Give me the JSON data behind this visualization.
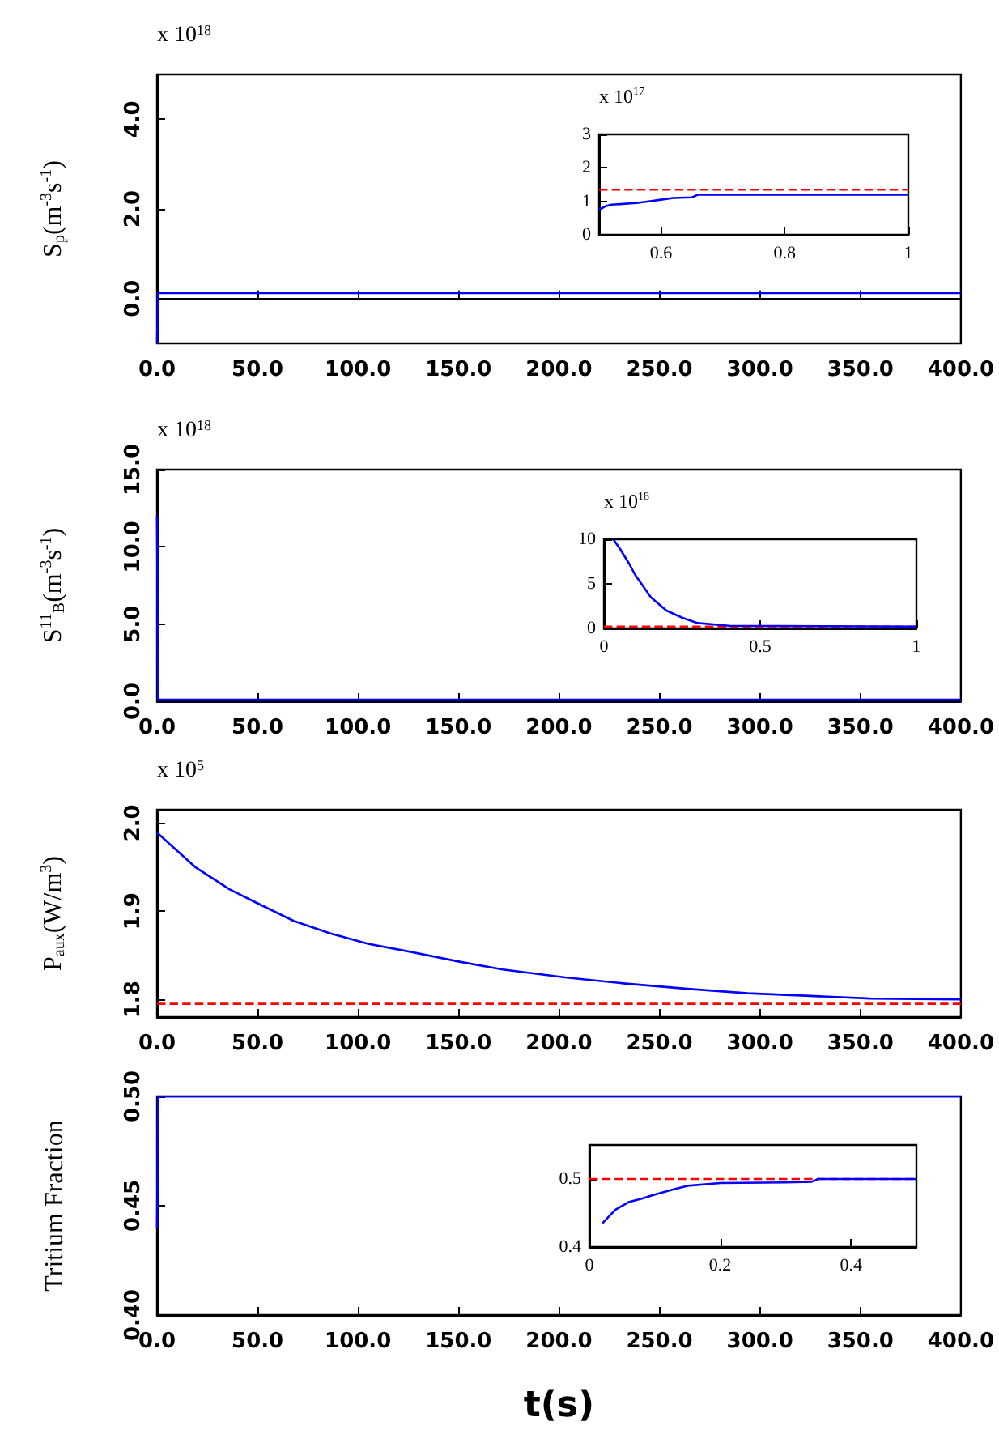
{
  "chart_data": [
    {
      "type": "line",
      "ylabel": "S$_{p}$(m$^{-3}$s$^{-1}$)",
      "annotations": [
        "x 10$^{18}$"
      ],
      "xlim": [
        0,
        400
      ],
      "xticks": [
        {
          "value": 0,
          "label": "0.0"
        },
        {
          "value": 50,
          "label": "50.0"
        },
        {
          "value": 100,
          "label": "100.0"
        },
        {
          "value": 150,
          "label": "150.0"
        },
        {
          "value": 200,
          "label": "200.0"
        },
        {
          "value": 250,
          "label": "250.0"
        },
        {
          "value": 300,
          "label": "300.0"
        },
        {
          "value": 350,
          "label": "350.0"
        },
        {
          "value": 400,
          "label": "400.0"
        }
      ],
      "ylim": [
        -1,
        5
      ],
      "yticks": [
        {
          "value": 0,
          "label": "0.0"
        },
        {
          "value": 2,
          "label": "2.0"
        },
        {
          "value": 4,
          "label": "4.0"
        }
      ],
      "series": [
        {
          "color": "#0000ff",
          "x": [
            0,
            0.5,
            400
          ],
          "values": [
            -1,
            0.12,
            0.12
          ]
        }
      ]
    },
    {
      "type": "line",
      "annotations": [
        "x 10$^{17}$"
      ],
      "xlim": [
        0.5,
        1
      ],
      "xticks": [
        0.6,
        0.8,
        1
      ],
      "ylim": [
        0,
        3
      ],
      "yticks": [
        0,
        1,
        2,
        3
      ],
      "ref_lines": [
        {
          "axis": "y",
          "value": 1.35,
          "color": "#ff0000",
          "line_style": "dashed"
        }
      ],
      "series": [
        {
          "color": "#0000ff",
          "x": [
            0.5,
            0.51,
            0.52,
            0.56,
            0.58,
            0.6,
            0.62,
            0.65,
            0.66,
            0.8,
            1
          ],
          "values": [
            0.75,
            0.85,
            0.9,
            0.95,
            1.0,
            1.05,
            1.1,
            1.12,
            1.2,
            1.2,
            1.2
          ]
        }
      ]
    },
    {
      "type": "line",
      "ylabel": "S$^{11}$$_{B}$(m$^{-3}$s$^{-1}$)",
      "annotations": [
        "x 10$^{18}$"
      ],
      "xlim": [
        0,
        400
      ],
      "xticks": [
        {
          "value": 0,
          "label": "0.0"
        },
        {
          "value": 50,
          "label": "50.0"
        },
        {
          "value": 100,
          "label": "100.0"
        },
        {
          "value": 150,
          "label": "150.0"
        },
        {
          "value": 200,
          "label": "200.0"
        },
        {
          "value": 250,
          "label": "250.0"
        },
        {
          "value": 300,
          "label": "300.0"
        },
        {
          "value": 350,
          "label": "350.0"
        },
        {
          "value": 400,
          "label": "400.0"
        }
      ],
      "ylim": [
        0,
        15
      ],
      "yticks": [
        {
          "value": 0,
          "label": "0.0"
        },
        {
          "value": 5,
          "label": "5.0"
        },
        {
          "value": 10,
          "label": "10.0"
        },
        {
          "value": 15,
          "label": "15.0"
        }
      ],
      "series": [
        {
          "color": "#0000ff",
          "x": [
            0,
            0.5,
            400
          ],
          "values": [
            12,
            0.1,
            0.1
          ]
        }
      ]
    },
    {
      "type": "line",
      "annotations": [
        "x 10$^{18}$"
      ],
      "xlim": [
        0,
        1
      ],
      "xticks": [
        0,
        0.5,
        1
      ],
      "ylim": [
        0,
        10
      ],
      "yticks": [
        0,
        5,
        10
      ],
      "ref_lines": [
        {
          "axis": "y",
          "value": 0.2,
          "color": "#ff0000",
          "line_style": "dashed"
        }
      ],
      "series": [
        {
          "color": "#0000ff",
          "x": [
            0.03,
            0.05,
            0.08,
            0.1,
            0.13,
            0.15,
            0.18,
            0.2,
            0.25,
            0.3,
            0.4,
            1
          ],
          "values": [
            10,
            9,
            7.3,
            6,
            4.5,
            3.5,
            2.6,
            2,
            1.2,
            0.6,
            0.3,
            0.2
          ]
        }
      ]
    },
    {
      "type": "line",
      "ylabel": "P$_{aux}$(W/m$^{3}$)",
      "annotations": [
        "x 10$^{5}$"
      ],
      "xlim": [
        0,
        400
      ],
      "xticks": [
        {
          "value": 0,
          "label": "0.0"
        },
        {
          "value": 50,
          "label": "50.0"
        },
        {
          "value": 100,
          "label": "100.0"
        },
        {
          "value": 150,
          "label": "150.0"
        },
        {
          "value": 200,
          "label": "200.0"
        },
        {
          "value": 250,
          "label": "250.0"
        },
        {
          "value": 300,
          "label": "300.0"
        },
        {
          "value": 350,
          "label": "350.0"
        },
        {
          "value": 400,
          "label": "400.0"
        }
      ],
      "ylim": [
        1.78,
        2.015
      ],
      "yticks": [
        1.8,
        1.9,
        {
          "value": 2,
          "label": "2.0"
        }
      ],
      "ref_lines": [
        {
          "axis": "y",
          "value": 1.795,
          "color": "#ff0000",
          "line_style": "dashed"
        }
      ],
      "series": [
        {
          "color": "#0000ff",
          "x": [
            0,
            19,
            36,
            50,
            68,
            86,
            105,
            126,
            150,
            172,
            203,
            233,
            264,
            294,
            325,
            355,
            400
          ],
          "values": [
            1.989,
            1.95,
            1.925,
            1.909,
            1.889,
            1.875,
            1.863,
            1.854,
            1.843,
            1.834,
            1.825,
            1.818,
            1.812,
            1.807,
            1.804,
            1.801,
            1.8
          ]
        }
      ]
    },
    {
      "type": "line",
      "ylabel": "Tritium Fraction",
      "xlabel": "t(s)",
      "xlim": [
        0,
        400
      ],
      "xticks": [
        {
          "value": 0,
          "label": "0.0"
        },
        {
          "value": 50,
          "label": "50.0"
        },
        {
          "value": 100,
          "label": "100.0"
        },
        {
          "value": 150,
          "label": "150.0"
        },
        {
          "value": 200,
          "label": "200.0"
        },
        {
          "value": 250,
          "label": "250.0"
        },
        {
          "value": 300,
          "label": "300.0"
        },
        {
          "value": 350,
          "label": "350.0"
        },
        {
          "value": 400,
          "label": "400.0"
        }
      ],
      "ylim": [
        0.4,
        0.5
      ],
      "yticks": [
        {
          "value": 0.4,
          "label": "0.40"
        },
        {
          "value": 0.45,
          "label": "0.45"
        },
        {
          "value": 0.5,
          "label": "0.50"
        }
      ],
      "series": [
        {
          "color": "#0000ff",
          "x": [
            0,
            0.5,
            400
          ],
          "values": [
            0.44,
            0.5,
            0.5
          ]
        }
      ]
    },
    {
      "type": "line",
      "xlim": [
        0,
        0.5
      ],
      "xticks": [
        0,
        0.2,
        0.4
      ],
      "ylim": [
        0.4,
        0.55
      ],
      "yticks": [
        0.4,
        0.5
      ],
      "ref_lines": [
        {
          "axis": "y",
          "value": 0.5,
          "color": "#ff0000",
          "line_style": "dashed"
        }
      ],
      "series": [
        {
          "color": "#0000ff",
          "x": [
            0.02,
            0.03,
            0.04,
            0.06,
            0.08,
            0.1,
            0.13,
            0.15,
            0.2,
            0.3,
            0.34,
            0.35,
            0.5
          ],
          "values": [
            0.435,
            0.445,
            0.455,
            0.466,
            0.471,
            0.477,
            0.485,
            0.49,
            0.494,
            0.495,
            0.496,
            0.5,
            0.5
          ]
        }
      ]
    }
  ]
}
